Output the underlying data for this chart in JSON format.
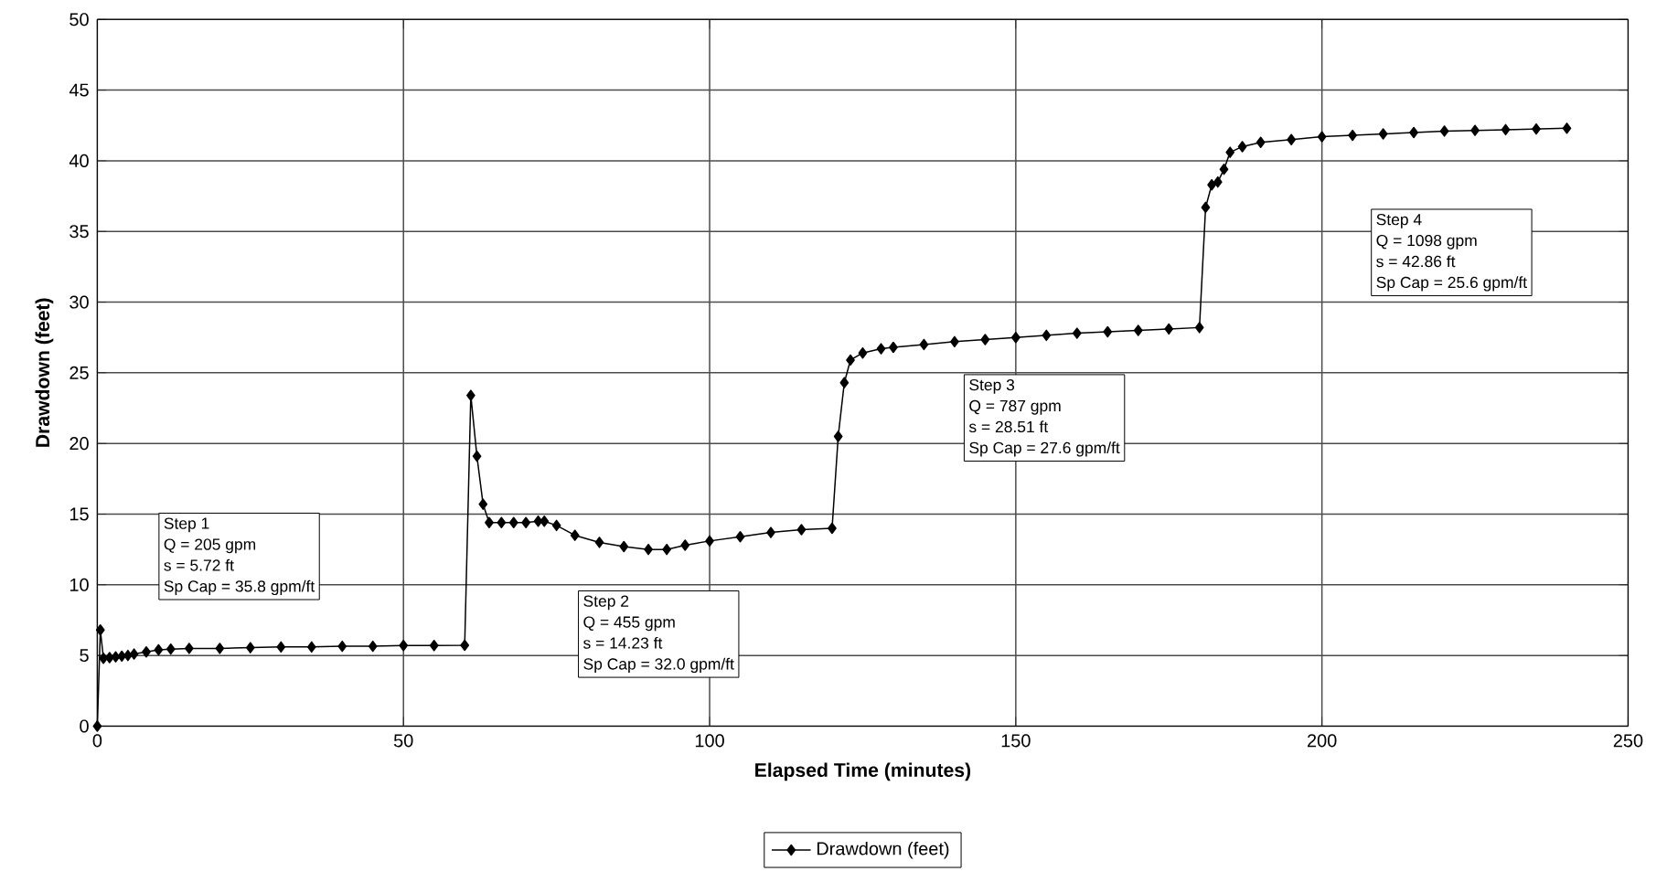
{
  "chart_data": {
    "type": "line",
    "xlabel": "Elapsed Time (minutes)",
    "ylabel": "Drawdown (feet)",
    "xlim": [
      0,
      250
    ],
    "xticks": [
      0,
      50,
      100,
      150,
      200,
      250
    ],
    "ylim": [
      0,
      50
    ],
    "yticks": [
      0,
      5,
      10,
      15,
      20,
      25,
      30,
      35,
      40,
      45,
      50
    ],
    "grid": true,
    "legend": "bottom",
    "marker": "diamond",
    "line_style": "solid",
    "x": [
      0,
      0.5,
      1,
      2,
      3,
      4,
      5,
      6,
      8,
      10,
      12,
      15,
      20,
      25,
      30,
      35,
      40,
      45,
      50,
      55,
      60,
      61,
      62,
      63,
      64,
      66,
      68,
      70,
      72,
      73,
      75,
      78,
      82,
      86,
      90,
      93,
      96,
      100,
      105,
      110,
      115,
      120,
      121,
      122,
      123,
      125,
      128,
      130,
      135,
      140,
      145,
      150,
      155,
      160,
      165,
      170,
      175,
      180,
      181,
      182,
      183,
      184,
      185,
      187,
      190,
      195,
      200,
      205,
      210,
      215,
      220,
      225,
      230,
      235,
      240
    ],
    "series": [
      {
        "name": "Drawdown (feet)",
        "color": "#000000",
        "values": [
          0,
          6.8,
          4.8,
          4.85,
          4.9,
          4.95,
          5.0,
          5.1,
          5.25,
          5.4,
          5.45,
          5.5,
          5.5,
          5.55,
          5.6,
          5.6,
          5.65,
          5.65,
          5.7,
          5.7,
          5.72,
          23.4,
          19.1,
          15.7,
          14.4,
          14.4,
          14.4,
          14.4,
          14.5,
          14.5,
          14.2,
          13.5,
          13.0,
          12.7,
          12.5,
          12.5,
          12.8,
          13.1,
          13.4,
          13.7,
          13.9,
          14.0,
          20.5,
          24.3,
          25.9,
          26.4,
          26.7,
          26.8,
          27.0,
          27.2,
          27.35,
          27.5,
          27.65,
          27.8,
          27.9,
          28.0,
          28.1,
          28.2,
          36.7,
          38.3,
          38.5,
          39.4,
          40.6,
          41.0,
          41.3,
          41.5,
          41.7,
          41.8,
          41.9,
          42.0,
          42.1,
          42.15,
          42.2,
          42.25,
          42.3
        ]
      }
    ],
    "annotations": [
      "Step 1",
      "Q = 205 gpm",
      "s = 5.72 ft",
      "Sp Cap = 35.8 gpm/ft",
      "Step 2",
      "Q = 455 gpm",
      "s = 14.23 ft",
      "Sp Cap = 32.0 gpm/ft",
      "Step 3",
      "Q = 787 gpm",
      "s = 28.51 ft",
      "Sp Cap = 27.6 gpm/ft",
      "Step 4",
      "Q = 1098 gpm",
      "s = 42.86 ft",
      "Sp Cap = 25.6 gpm/ft"
    ]
  }
}
